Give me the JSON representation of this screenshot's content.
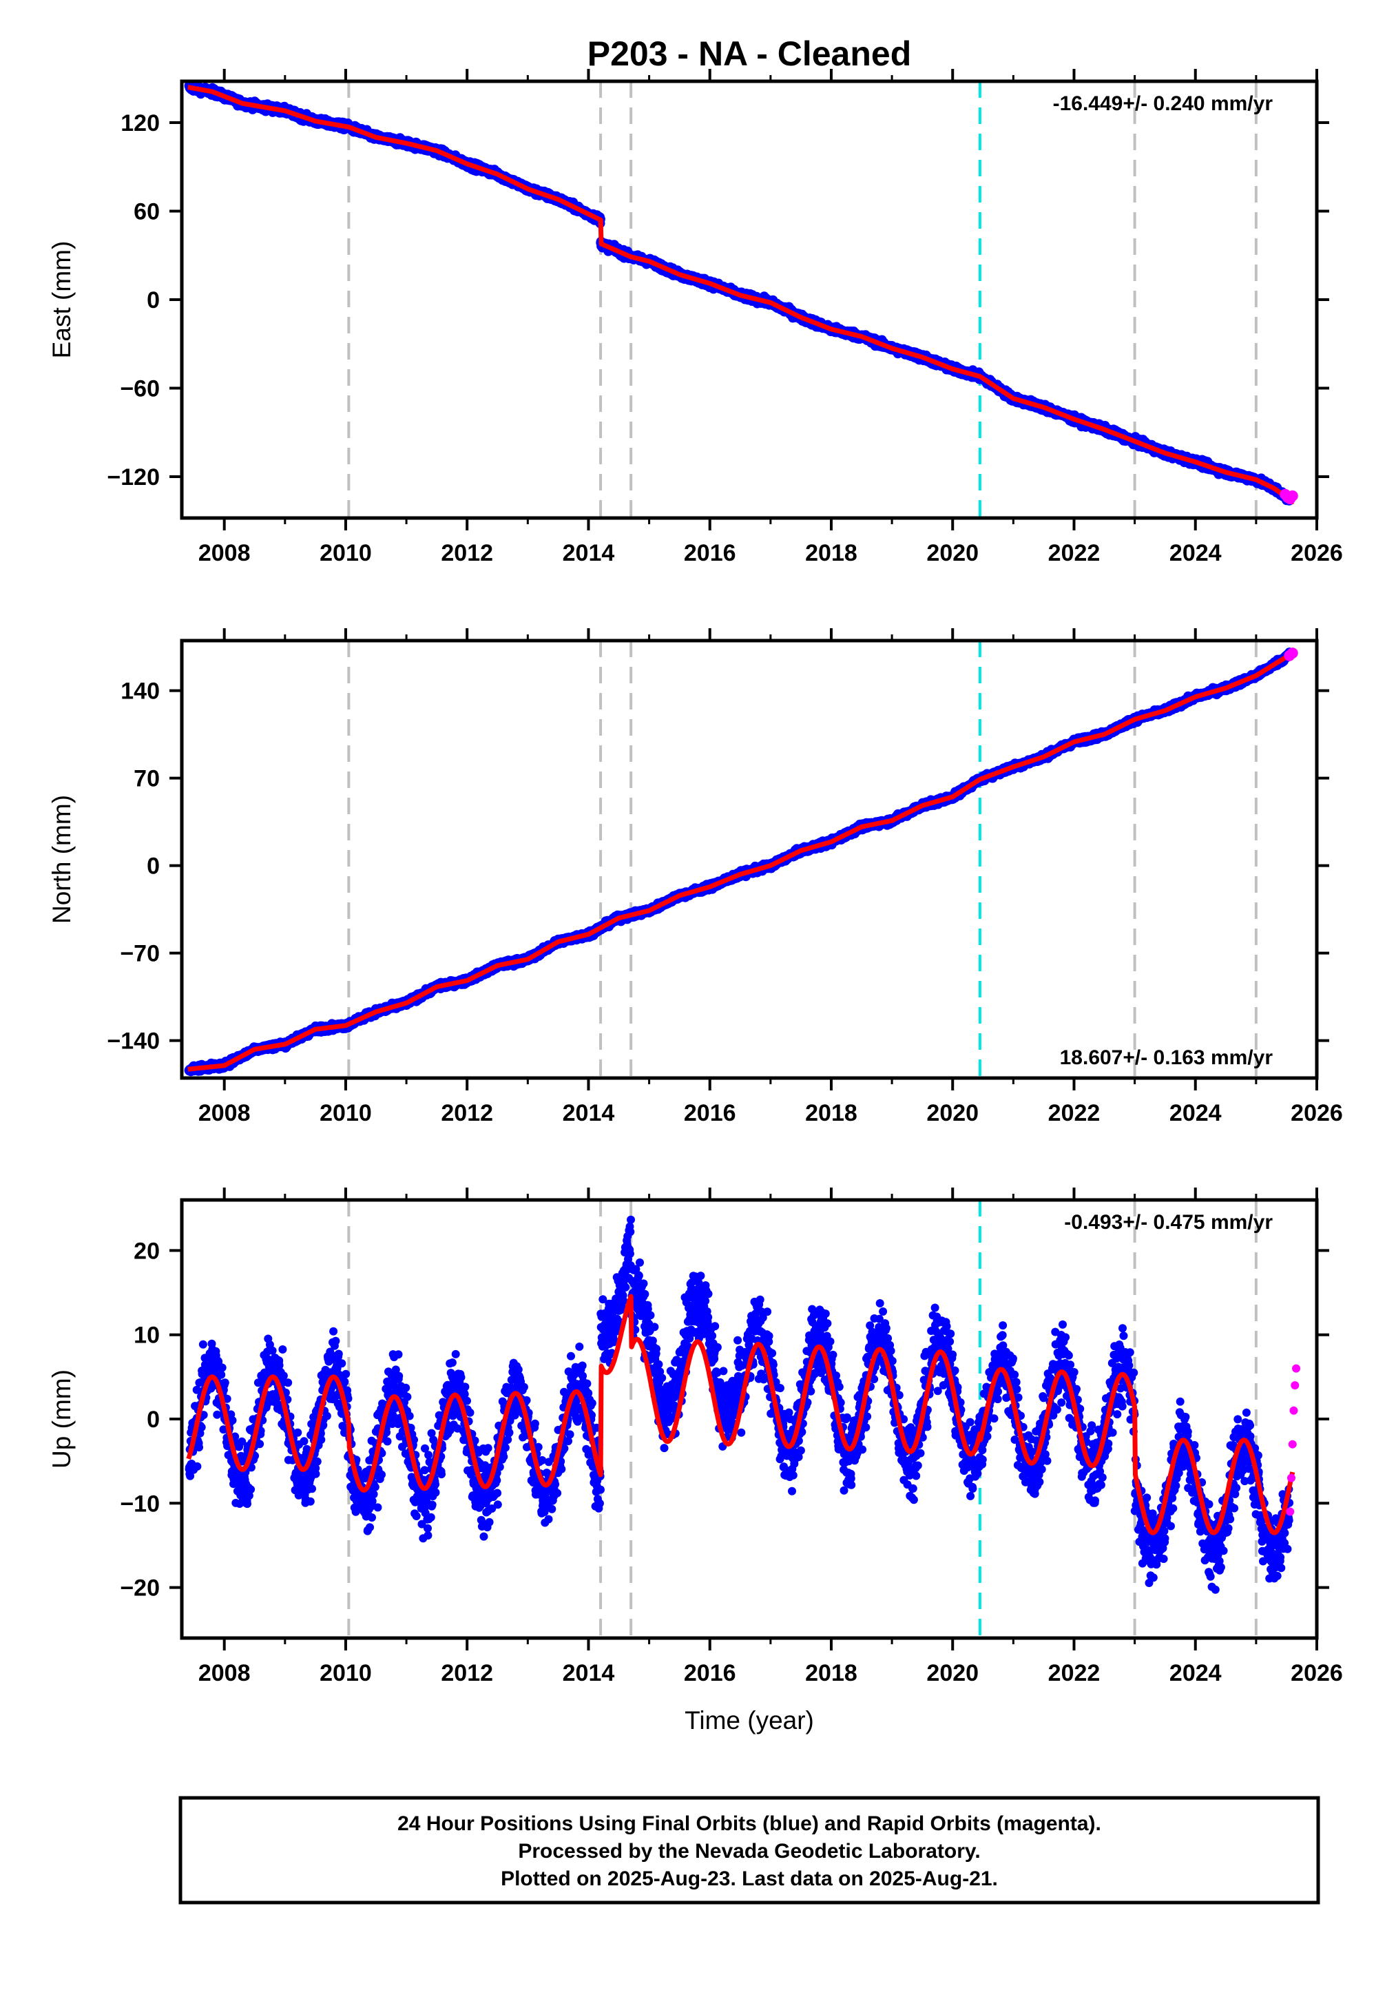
{
  "title": "P203  - NA - Cleaned",
  "footer": {
    "line1": "24 Hour Positions Using Final Orbits (blue) and Rapid Orbits (magenta).",
    "line2": "Processed by the Nevada Geodetic Laboratory.",
    "line3": "Plotted on 2025-Aug-23. Last data on 2025-Aug-21."
  },
  "colors": {
    "final_orbits": "#0000ff",
    "rapid_orbits": "#ff00ff",
    "model_fit": "#ff0000",
    "equipment_change": "#c0c0c0",
    "earthquake": "#00e5e5",
    "frame": "#000000"
  },
  "chart_data": [
    {
      "type": "scatter",
      "panel": "east",
      "ylabel": "East (mm)",
      "xlabel": "",
      "rate_label": "-16.449+/- 0.240 mm/yr",
      "rate_position": "top-right",
      "xlim": [
        2007.3,
        2026.0
      ],
      "ylim": [
        -148,
        148
      ],
      "xticks": [
        "2008",
        "2010",
        "2012",
        "2014",
        "2016",
        "2018",
        "2020",
        "2022",
        "2024",
        "2026"
      ],
      "yticks": [
        "120",
        "60",
        "0",
        "−60",
        "−120"
      ],
      "ytick_values": [
        120,
        60,
        0,
        -60,
        -120
      ],
      "grid": false,
      "vlines_gray": [
        2010.05,
        2014.2,
        2014.7,
        2023.0,
        2025.0
      ],
      "vlines_cyan": [
        2020.45
      ],
      "model": {
        "x": [
          2007.4,
          2007.8,
          2008.3,
          2009.0,
          2009.5,
          2010.05,
          2010.5,
          2011.0,
          2011.5,
          2012.0,
          2012.5,
          2013.0,
          2013.5,
          2014.0,
          2014.2,
          2014.2,
          2014.7,
          2015.0,
          2015.5,
          2016.0,
          2016.5,
          2017.0,
          2017.5,
          2018.0,
          2018.5,
          2019.0,
          2019.5,
          2020.0,
          2020.45,
          2021.0,
          2021.5,
          2022.0,
          2022.5,
          2023.0,
          2023.5,
          2024.0,
          2024.5,
          2025.0,
          2025.3,
          2025.6
        ],
        "y": [
          144,
          141,
          133,
          128,
          121,
          117,
          110,
          106,
          101,
          92,
          85,
          75,
          68,
          58,
          54,
          38,
          29,
          26,
          17,
          11,
          3,
          -2,
          -12,
          -20,
          -25,
          -33,
          -39,
          -47,
          -52,
          -67,
          -73,
          -81,
          -88,
          -96,
          -104,
          -110,
          -117,
          -122,
          -128,
          -137
        ]
      },
      "rapid": {
        "x": [
          2025.48,
          2025.52,
          2025.56,
          2025.6
        ],
        "y": [
          -132,
          -134,
          -135,
          -133
        ]
      }
    },
    {
      "type": "scatter",
      "panel": "north",
      "ylabel": "North (mm)",
      "xlabel": "",
      "rate_label": "18.607+/- 0.163 mm/yr",
      "rate_position": "bottom-right",
      "xlim": [
        2007.3,
        2026.0
      ],
      "ylim": [
        -170,
        180
      ],
      "xticks": [
        "2008",
        "2010",
        "2012",
        "2014",
        "2016",
        "2018",
        "2020",
        "2022",
        "2024",
        "2026"
      ],
      "yticks": [
        "140",
        "70",
        "0",
        "−70",
        "−140"
      ],
      "ytick_values": [
        140,
        70,
        0,
        -70,
        -140
      ],
      "grid": false,
      "vlines_gray": [
        2010.05,
        2014.2,
        2014.7,
        2023.0,
        2025.0
      ],
      "vlines_cyan": [
        2020.45
      ],
      "model": {
        "x": [
          2007.4,
          2008.0,
          2008.5,
          2009.0,
          2009.5,
          2010.0,
          2010.5,
          2011.0,
          2011.5,
          2012.0,
          2012.5,
          2013.0,
          2013.5,
          2014.0,
          2014.5,
          2015.0,
          2015.5,
          2016.0,
          2016.5,
          2017.0,
          2017.5,
          2018.0,
          2018.5,
          2019.0,
          2019.5,
          2020.0,
          2020.45,
          2021.0,
          2021.5,
          2022.0,
          2022.5,
          2023.0,
          2023.5,
          2024.0,
          2024.5,
          2025.0,
          2025.6
        ],
        "y": [
          -163,
          -160,
          -147,
          -143,
          -131,
          -128,
          -117,
          -110,
          -97,
          -92,
          -80,
          -75,
          -61,
          -55,
          -42,
          -36,
          -24,
          -17,
          -7,
          0,
          12,
          19,
          31,
          36,
          48,
          55,
          69,
          79,
          87,
          99,
          105,
          117,
          124,
          135,
          142,
          152,
          170
        ]
      },
      "rapid": {
        "x": [
          2025.55,
          2025.6
        ],
        "y": [
          168,
          170
        ]
      }
    },
    {
      "type": "scatter",
      "panel": "up",
      "ylabel": "Up (mm)",
      "xlabel": "Time (year)",
      "rate_label": "-0.493+/- 0.475 mm/yr",
      "rate_position": "top-right",
      "xlim": [
        2007.3,
        2026.0
      ],
      "ylim": [
        -26,
        26
      ],
      "xticks": [
        "2008",
        "2010",
        "2012",
        "2014",
        "2016",
        "2018",
        "2020",
        "2022",
        "2024",
        "2026"
      ],
      "yticks": [
        "20",
        "10",
        "0",
        "−10",
        "−20"
      ],
      "ytick_values": [
        20,
        10,
        0,
        -10,
        -20
      ],
      "grid": false,
      "vlines_gray": [
        2010.05,
        2014.2,
        2014.7,
        2023.0,
        2025.0
      ],
      "vlines_cyan": [
        2020.45
      ],
      "model_params": {
        "segments": [
          {
            "x0": 2007.4,
            "x1": 2010.05,
            "base": -0.5,
            "trend": 0.0,
            "amp": 5.5
          },
          {
            "x0": 2010.05,
            "x1": 2014.2,
            "base": -3.0,
            "trend": 0.2,
            "amp": 5.5
          },
          {
            "x0": 2014.2,
            "x1": 2014.7,
            "base": 10.5,
            "trend": 0.0,
            "amp": 5.0
          },
          {
            "x0": 2014.7,
            "x1": 2020.45,
            "base": 3.5,
            "trend": -0.3,
            "amp": 6.0
          },
          {
            "x0": 2020.45,
            "x1": 2023.0,
            "base": 0.5,
            "trend": -0.3,
            "amp": 5.5
          },
          {
            "x0": 2023.0,
            "x1": 2025.6,
            "base": -8.0,
            "trend": 0.0,
            "amp": 5.5
          }
        ],
        "phase_peak": 0.8
      },
      "rapid": {
        "x": [
          2025.56,
          2025.58,
          2025.6,
          2025.62,
          2025.64,
          2025.66
        ],
        "y": [
          -11,
          -7,
          -3,
          1,
          4,
          6
        ]
      }
    }
  ]
}
